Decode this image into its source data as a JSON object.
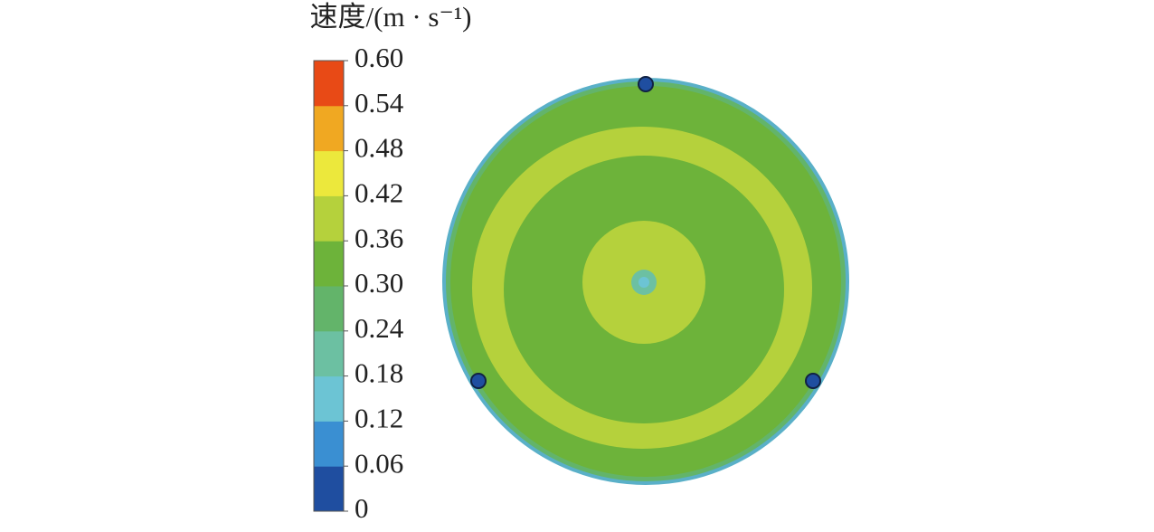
{
  "chart_data": {
    "type": "contour",
    "colorbar": {
      "title": "速度/(m · s⁻¹)",
      "ticks": [
        0,
        0.06,
        0.12,
        0.18,
        0.24,
        {
          "value": 0.3,
          "label": "0.30"
        },
        0.36,
        0.42,
        0.48,
        0.54,
        {
          "value": 0.6,
          "label": "0.60"
        }
      ],
      "colors": [
        "#1f4ea0",
        "#3a8fd2",
        "#6cc4d4",
        "#6cc0a2",
        "#63b46a",
        "#6db33a",
        "#b5d13c",
        "#ece83c",
        "#f0a822",
        "#e84a16"
      ]
    }
  }
}
